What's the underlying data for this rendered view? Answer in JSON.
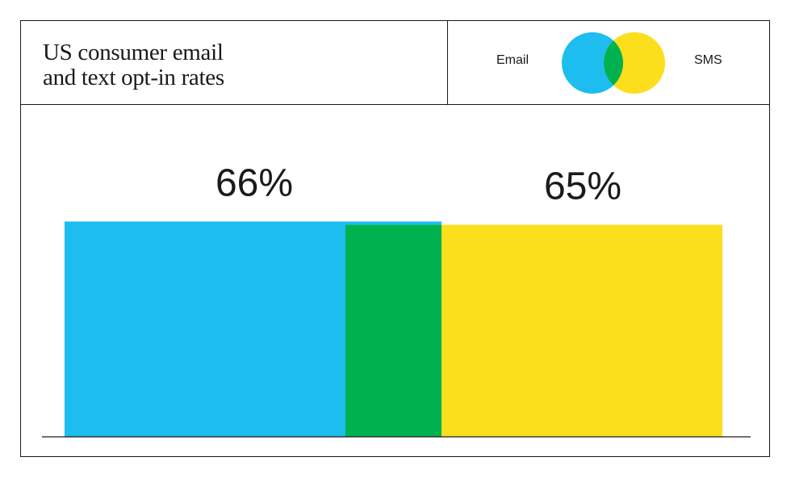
{
  "title_lines": [
    "US consumer email",
    "and text opt-in rates"
  ],
  "legend": {
    "email": "Email",
    "sms": "SMS"
  },
  "colors": {
    "email": "#1DBDF0",
    "sms": "#FCDF1C",
    "overlap": "#00B14F",
    "axis": "#1a1a1a"
  },
  "chart_data": {
    "type": "bar",
    "categories": [
      "Email",
      "SMS"
    ],
    "values": [
      66,
      65
    ],
    "value_labels": [
      "66%",
      "65%"
    ],
    "series": [
      {
        "name": "Email",
        "value": 66
      },
      {
        "name": "SMS",
        "value": 65
      }
    ],
    "ylim": [
      0,
      100
    ],
    "grid": false,
    "legend_position": "top-right"
  }
}
